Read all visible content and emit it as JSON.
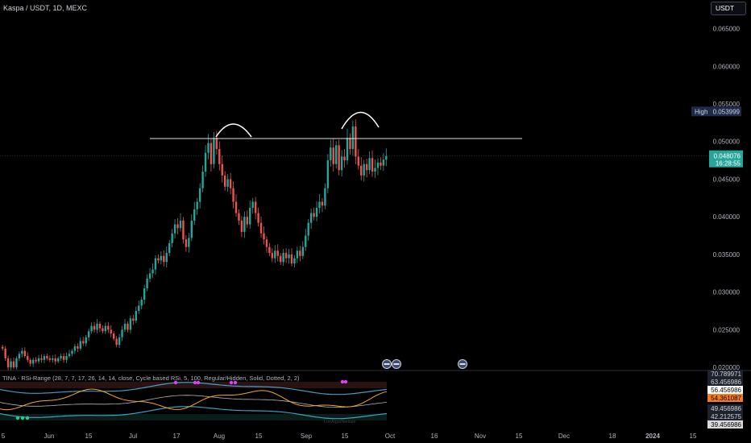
{
  "header": {
    "title": "Kaspa / USDT, 1D, MEXC",
    "currency_button": "USDT"
  },
  "indicator": {
    "label": "TINA - RSi-Range (28, 7, 7, 17, 26, 14, 14, close, Cycle based RSi, 5, 100, Regular/Hidden, Solid, Dotted, 2, 2)",
    "watermark": "LuxAlgo/Nielsen",
    "axis_labels": [
      {
        "value": "70.789971",
        "bg": "#1e222d",
        "fg": "#d1d4dc"
      },
      {
        "value": "63.456986",
        "bg": "#1e222d",
        "fg": "#d1d4dc"
      },
      {
        "value": "56.456986",
        "bg": "#ffffff",
        "fg": "#000000"
      },
      {
        "value": "54.361087",
        "bg": "#f57c1f",
        "fg": "#000000"
      },
      {
        "value": "49.456986",
        "bg": "#1e222d",
        "fg": "#d1d4dc"
      },
      {
        "value": "42.212575",
        "bg": "#1e222d",
        "fg": "#d1d4dc"
      },
      {
        "value": "39.456986",
        "bg": "#d9d9d9",
        "fg": "#000000"
      }
    ]
  },
  "colors": {
    "up": "#26a69a",
    "down": "#ef5350",
    "background": "#000000",
    "rsi_line": "#f5a623",
    "band": "#4fc3f7",
    "current_price_bg": "#26a69a",
    "high_label_bg": "#1e2a4a"
  },
  "chart_data": {
    "type": "candlestick",
    "symbol": "Kaspa / USDT",
    "interval": "1D",
    "exchange": "MEXC",
    "x_ticks": [
      "5",
      "Jun",
      "15",
      "Jul",
      "17",
      "Aug",
      "15",
      "Sep",
      "15",
      "Oct",
      "16",
      "Nov",
      "15",
      "Dec",
      "18",
      "2024",
      "15"
    ],
    "y_ticks": [
      "0.065000",
      "0.060000",
      "0.055000",
      "0.050000",
      "0.045000",
      "0.040000",
      "0.035000",
      "0.030000",
      "0.025000",
      "0.020000"
    ],
    "ylim": [
      0.0198,
      0.0688
    ],
    "resistance_level": 0.0504,
    "high": {
      "label": "High",
      "value": "0.053999"
    },
    "last_price": {
      "value": "0.048076",
      "countdown": "16:28:55"
    },
    "annotations": [
      "arc over first peak",
      "arc over second peak",
      "horizontal resistance line"
    ],
    "series": [
      {
        "name": "price",
        "closes": [
          0.0225,
          0.0212,
          0.02,
          0.0208,
          0.02,
          0.0212,
          0.0218,
          0.0222,
          0.0215,
          0.021,
          0.0205,
          0.021,
          0.0208,
          0.0212,
          0.021,
          0.0215,
          0.0212,
          0.021,
          0.0212,
          0.0208,
          0.0212,
          0.0215,
          0.021,
          0.0215,
          0.0218,
          0.0222,
          0.0228,
          0.0225,
          0.0235,
          0.0232,
          0.024,
          0.0248,
          0.0255,
          0.025,
          0.0258,
          0.0252,
          0.0248,
          0.0255,
          0.025,
          0.0245,
          0.0238,
          0.023,
          0.024,
          0.025,
          0.0258,
          0.025,
          0.0265,
          0.0262,
          0.0275,
          0.0282,
          0.029,
          0.0305,
          0.0318,
          0.0325,
          0.033,
          0.0345,
          0.0342,
          0.0348,
          0.034,
          0.0352,
          0.0365,
          0.0378,
          0.039,
          0.0385,
          0.0395,
          0.037,
          0.036,
          0.0372,
          0.0395,
          0.041,
          0.042,
          0.0438,
          0.046,
          0.0485,
          0.0498,
          0.047,
          0.0505,
          0.049,
          0.047,
          0.0455,
          0.044,
          0.045,
          0.0438,
          0.042,
          0.0405,
          0.0395,
          0.038,
          0.04,
          0.039,
          0.0412,
          0.042,
          0.0405,
          0.0392,
          0.0378,
          0.037,
          0.036,
          0.0352,
          0.0345,
          0.0355,
          0.0348,
          0.034,
          0.0352,
          0.0345,
          0.035,
          0.0338,
          0.0345,
          0.0355,
          0.0348,
          0.036,
          0.0375,
          0.0392,
          0.0405,
          0.04,
          0.0412,
          0.042,
          0.0415,
          0.0438,
          0.0475,
          0.0492,
          0.047,
          0.0495,
          0.0462,
          0.048,
          0.0475,
          0.0505,
          0.049,
          0.052,
          0.048,
          0.0468,
          0.0455,
          0.047,
          0.0462,
          0.0478,
          0.046,
          0.0465,
          0.0472,
          0.0468,
          0.0476,
          0.04808
        ]
      },
      {
        "name": "rsi"
      }
    ]
  }
}
